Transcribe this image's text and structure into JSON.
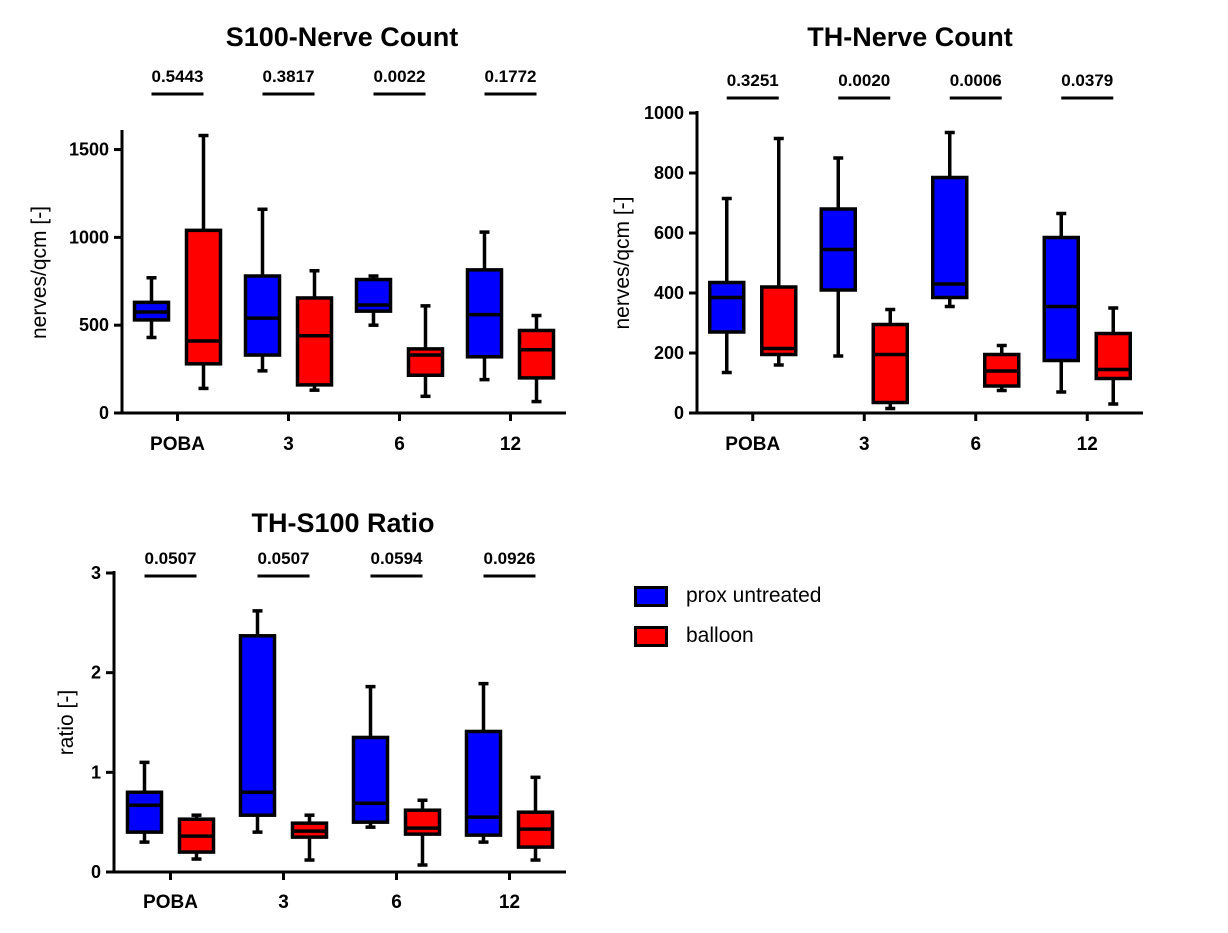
{
  "legend": [
    {
      "label": "prox untreated",
      "color": "#0000ff"
    },
    {
      "label": "balloon",
      "color": "#ff0000"
    }
  ],
  "chart_data": [
    {
      "type": "box",
      "title": "S100-Nerve Count",
      "ylabel": "nerves/qcm [-]",
      "ylim": [
        0,
        1600
      ],
      "yticks": [
        0,
        500,
        1000,
        1500
      ],
      "categories": [
        "POBA",
        "3",
        "6",
        "12"
      ],
      "pvalues": [
        "0.5443",
        "0.3817",
        "0.0022",
        "0.1772"
      ],
      "series": [
        {
          "name": "prox untreated",
          "boxes": [
            {
              "min": 430,
              "q1": 530,
              "median": 575,
              "q3": 630,
              "max": 770
            },
            {
              "min": 240,
              "q1": 330,
              "median": 540,
              "q3": 780,
              "max": 1160
            },
            {
              "min": 500,
              "q1": 580,
              "median": 615,
              "q3": 760,
              "max": 780
            },
            {
              "min": 190,
              "q1": 320,
              "median": 560,
              "q3": 815,
              "max": 1030
            }
          ]
        },
        {
          "name": "balloon",
          "boxes": [
            {
              "min": 140,
              "q1": 280,
              "median": 410,
              "q3": 1040,
              "max": 1580
            },
            {
              "min": 130,
              "q1": 160,
              "median": 440,
              "q3": 655,
              "max": 810
            },
            {
              "min": 95,
              "q1": 215,
              "median": 330,
              "q3": 365,
              "max": 610
            },
            {
              "min": 65,
              "q1": 200,
              "median": 360,
              "q3": 470,
              "max": 555
            }
          ]
        }
      ]
    },
    {
      "type": "box",
      "title": "TH-Nerve Count",
      "ylabel": "nerves/qcm [-]",
      "ylim": [
        0,
        1000
      ],
      "yticks": [
        0,
        200,
        400,
        600,
        800,
        1000
      ],
      "categories": [
        "POBA",
        "3",
        "6",
        "12"
      ],
      "pvalues": [
        "0.3251",
        "0.0020",
        "0.0006",
        "0.0379"
      ],
      "series": [
        {
          "name": "prox untreated",
          "boxes": [
            {
              "min": 135,
              "q1": 270,
              "median": 385,
              "q3": 435,
              "max": 715
            },
            {
              "min": 190,
              "q1": 410,
              "median": 545,
              "q3": 680,
              "max": 850
            },
            {
              "min": 355,
              "q1": 385,
              "median": 430,
              "q3": 785,
              "max": 935
            },
            {
              "min": 70,
              "q1": 175,
              "median": 355,
              "q3": 585,
              "max": 665
            }
          ]
        },
        {
          "name": "balloon",
          "boxes": [
            {
              "min": 160,
              "q1": 195,
              "median": 215,
              "q3": 420,
              "max": 915
            },
            {
              "min": 15,
              "q1": 35,
              "median": 195,
              "q3": 295,
              "max": 345
            },
            {
              "min": 75,
              "q1": 90,
              "median": 140,
              "q3": 195,
              "max": 225
            },
            {
              "min": 30,
              "q1": 115,
              "median": 145,
              "q3": 265,
              "max": 350
            }
          ]
        }
      ]
    },
    {
      "type": "box",
      "title": "TH-S100 Ratio",
      "ylabel": "ratio [-]",
      "ylim": [
        0,
        3
      ],
      "yticks": [
        0,
        1,
        2,
        3
      ],
      "categories": [
        "POBA",
        "3",
        "6",
        "12"
      ],
      "pvalues": [
        "0.0507",
        "0.0507",
        "0.0594",
        "0.0926"
      ],
      "series": [
        {
          "name": "prox untreated",
          "boxes": [
            {
              "min": 0.3,
              "q1": 0.4,
              "median": 0.67,
              "q3": 0.8,
              "max": 1.1
            },
            {
              "min": 0.4,
              "q1": 0.57,
              "median": 0.8,
              "q3": 2.37,
              "max": 2.62
            },
            {
              "min": 0.45,
              "q1": 0.5,
              "median": 0.69,
              "q3": 1.35,
              "max": 1.86
            },
            {
              "min": 0.3,
              "q1": 0.37,
              "median": 0.55,
              "q3": 1.41,
              "max": 1.89
            }
          ]
        },
        {
          "name": "balloon",
          "boxes": [
            {
              "min": 0.13,
              "q1": 0.2,
              "median": 0.36,
              "q3": 0.53,
              "max": 0.57
            },
            {
              "min": 0.12,
              "q1": 0.35,
              "median": 0.41,
              "q3": 0.49,
              "max": 0.57
            },
            {
              "min": 0.07,
              "q1": 0.38,
              "median": 0.44,
              "q3": 0.62,
              "max": 0.72
            },
            {
              "min": 0.12,
              "q1": 0.25,
              "median": 0.43,
              "q3": 0.6,
              "max": 0.95
            }
          ]
        }
      ]
    }
  ]
}
